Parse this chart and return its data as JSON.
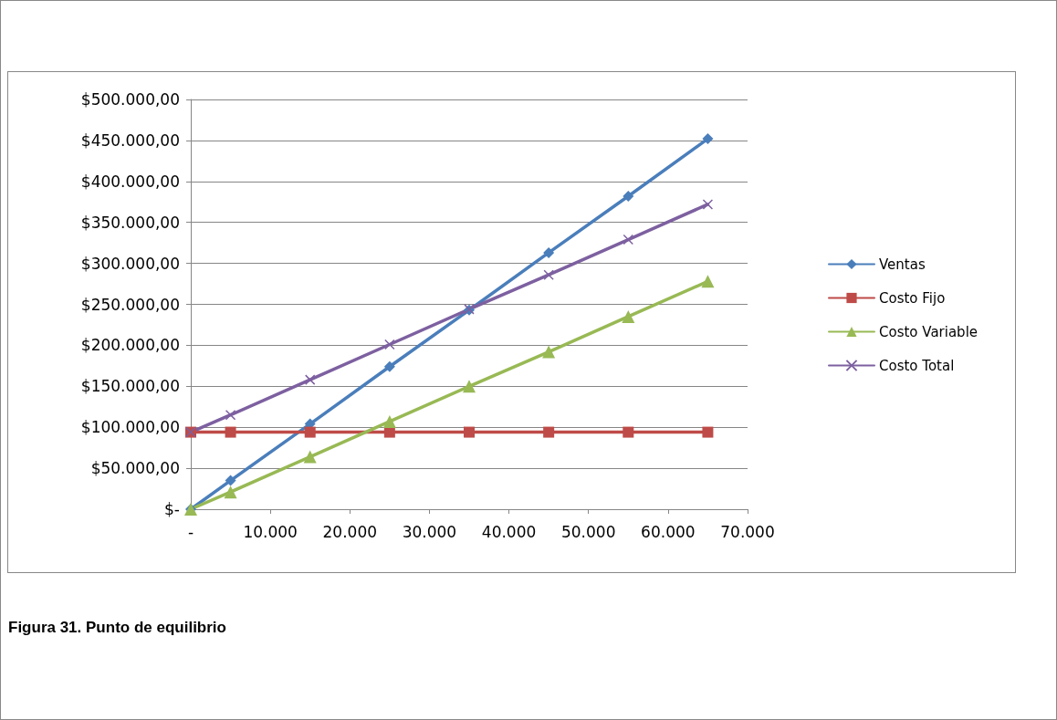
{
  "chart_data": {
    "type": "line",
    "x": [
      0,
      5000,
      15000,
      25000,
      35000,
      45000,
      55000,
      65000
    ],
    "series": [
      {
        "name": "Ventas",
        "color": "#4a7ebb",
        "marker": "diamond",
        "values": [
          0,
          35000,
          104000,
          174000,
          243000,
          313000,
          382000,
          452000
        ]
      },
      {
        "name": "Costo Fijo",
        "color": "#be4b48",
        "marker": "square",
        "values": [
          94000,
          94000,
          94000,
          94000,
          94000,
          94000,
          94000,
          94000
        ]
      },
      {
        "name": "Costo Variable",
        "color": "#98b954",
        "marker": "triangle",
        "values": [
          0,
          21000,
          64000,
          107000,
          150000,
          192000,
          235000,
          278000
        ]
      },
      {
        "name": "Costo Total",
        "color": "#7d60a0",
        "marker": "cross",
        "values": [
          94000,
          115000,
          158000,
          201000,
          244000,
          286000,
          329000,
          372000
        ]
      }
    ],
    "xlim": [
      0,
      70000
    ],
    "xticks": [
      {
        "value": 0,
        "label": "-"
      },
      {
        "value": 10000,
        "label": "10.000"
      },
      {
        "value": 20000,
        "label": "20.000"
      },
      {
        "value": 30000,
        "label": "30.000"
      },
      {
        "value": 40000,
        "label": "40.000"
      },
      {
        "value": 50000,
        "label": "50.000"
      },
      {
        "value": 60000,
        "label": "60.000"
      },
      {
        "value": 70000,
        "label": "70.000"
      }
    ],
    "ylim": [
      0,
      500000
    ],
    "yticks": [
      {
        "value": 0,
        "label": "$-"
      },
      {
        "value": 50000,
        "label": "$50.000,00"
      },
      {
        "value": 100000,
        "label": "$100.000,00"
      },
      {
        "value": 150000,
        "label": "$150.000,00"
      },
      {
        "value": 200000,
        "label": "$200.000,00"
      },
      {
        "value": 250000,
        "label": "$250.000,00"
      },
      {
        "value": 300000,
        "label": "$300.000,00"
      },
      {
        "value": 350000,
        "label": "$350.000,00"
      },
      {
        "value": 400000,
        "label": "$400.000,00"
      },
      {
        "value": 450000,
        "label": "$450.000,00"
      },
      {
        "value": 500000,
        "label": "$500.000,00"
      }
    ],
    "grid": "y",
    "legend": "right",
    "line_style": "solid",
    "annotations": [
      "Figura 31. Punto de equilibrio"
    ]
  }
}
